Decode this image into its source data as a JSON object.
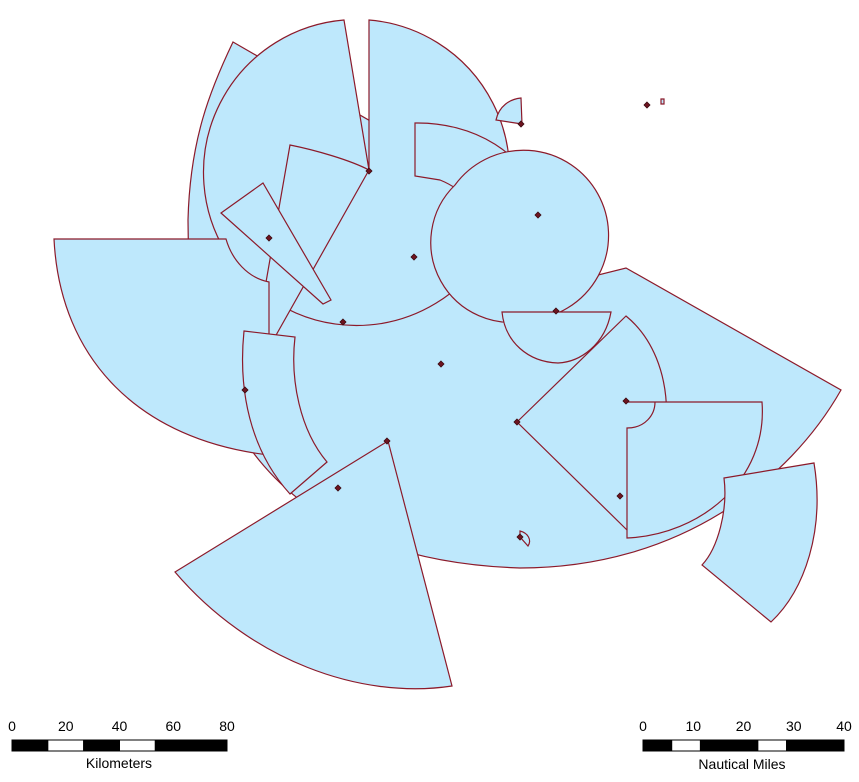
{
  "scalebars": {
    "kilometers": {
      "unit_label": "Kilometers",
      "ticks": [
        "0",
        "20",
        "40",
        "60",
        "80"
      ],
      "segments": [
        "black",
        "white",
        "black",
        "white",
        "black",
        "black"
      ]
    },
    "nautical_miles": {
      "unit_label": "Nautical Miles",
      "ticks": [
        "0",
        "10",
        "20",
        "30",
        "40"
      ],
      "segments": [
        "black",
        "white",
        "black",
        "black",
        "white",
        "black",
        "black"
      ]
    }
  },
  "colors": {
    "coverage_fill": "#bee8fc",
    "coverage_outline": "#8c1a2a",
    "site_marker": "#6e1420"
  }
}
